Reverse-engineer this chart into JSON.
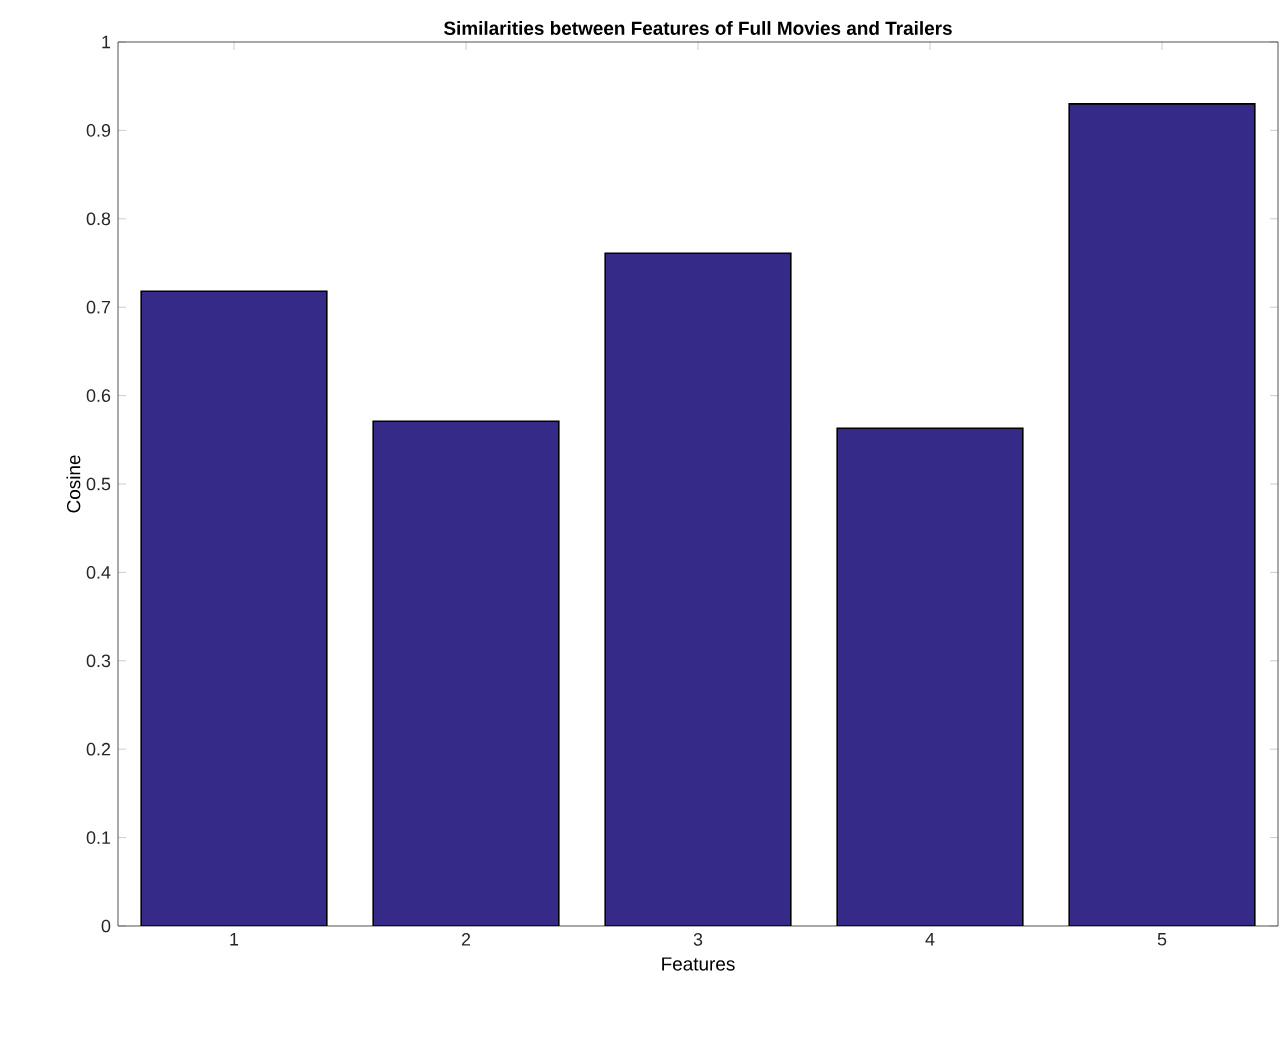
{
  "chart_data": {
    "type": "bar",
    "title": "Similarities between Features of Full Movies and Trailers",
    "xlabel": "Features",
    "ylabel": "Cosine",
    "categories": [
      "1",
      "2",
      "3",
      "4",
      "5"
    ],
    "values": [
      0.718,
      0.571,
      0.761,
      0.563,
      0.93
    ],
    "color": "#352a87",
    "ylim": [
      0,
      1
    ],
    "yticks": [
      0,
      0.1,
      0.2,
      0.3,
      0.4,
      0.5,
      0.6,
      0.7,
      0.8,
      0.9,
      1
    ],
    "grid": false
  }
}
